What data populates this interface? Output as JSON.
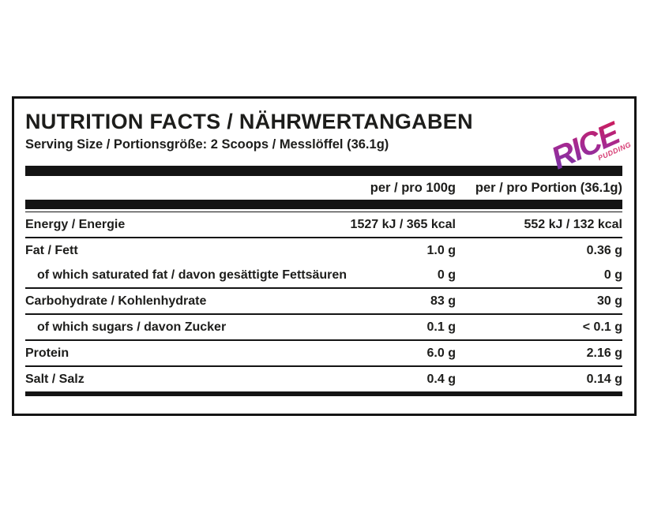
{
  "label": {
    "title": "NUTRITION FACTS / NÄHRWERTANGABEN",
    "serving_size": "Serving Size / Portionsgröße: 2 Scoops / Messlöffel (36.1g)",
    "columns": {
      "per_100g": "per / pro 100g",
      "per_portion": "per / pro Portion (36.1g)"
    },
    "rows": [
      {
        "label": "Energy / Energie",
        "indent": false,
        "per_100g": "1527 kJ / 365 kcal",
        "per_portion": "552 kJ / 132 kcal"
      },
      {
        "label": "Fat / Fett",
        "indent": false,
        "per_100g": "1.0 g",
        "per_portion": "0.36 g"
      },
      {
        "label": "of which saturated fat / davon gesättigte Fettsäuren",
        "indent": true,
        "per_100g": "0 g",
        "per_portion": "0 g"
      },
      {
        "label": "Carbohydrate / Kohlenhydrate",
        "indent": false,
        "per_100g": "83 g",
        "per_portion": "30 g"
      },
      {
        "label": "of which sugars / davon Zucker",
        "indent": true,
        "per_100g": "0.1 g",
        "per_portion": "< 0.1 g"
      },
      {
        "label": "Protein",
        "indent": false,
        "per_100g": "6.0 g",
        "per_portion": "2.16 g"
      },
      {
        "label": "Salt / Salz",
        "indent": false,
        "per_100g": "0.4 g",
        "per_portion": "0.14 g"
      }
    ],
    "colors": {
      "ink": "#1d1d1b",
      "bar": "#141414",
      "border": "#141414"
    }
  },
  "logo": {
    "text": "RICE",
    "subtext": "PUDDING",
    "color_start": "#6d35ad",
    "color_mid": "#a42a93",
    "color_end": "#d41a52",
    "subtext_color": "#d63a72"
  }
}
